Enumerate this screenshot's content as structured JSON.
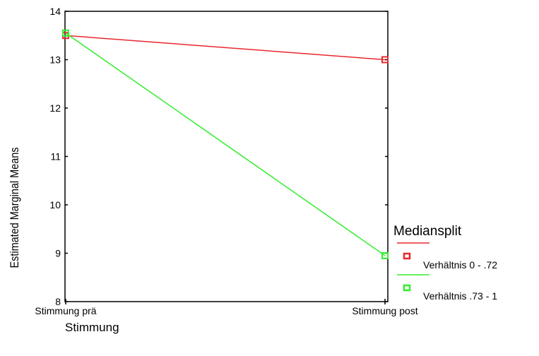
{
  "chart_data": {
    "type": "line",
    "categories": [
      "Stimmung prä",
      "Stimmung post"
    ],
    "series": [
      {
        "name": "Verhältnis 0 - .72",
        "values": [
          13.5,
          13.0
        ],
        "color": "#e8282f"
      },
      {
        "name": "Verhältnis .73 - 1",
        "values": [
          13.55,
          8.95
        ],
        "color": "#33ee2e"
      }
    ],
    "xlabel": "Stimmung",
    "ylabel": "Estimated Marginal Means",
    "ylim": [
      8,
      14
    ],
    "yticks": [
      8,
      9,
      10,
      11,
      12,
      13,
      14
    ],
    "legend": {
      "title": "Mediansplit",
      "placement": "right"
    },
    "grid": false
  }
}
